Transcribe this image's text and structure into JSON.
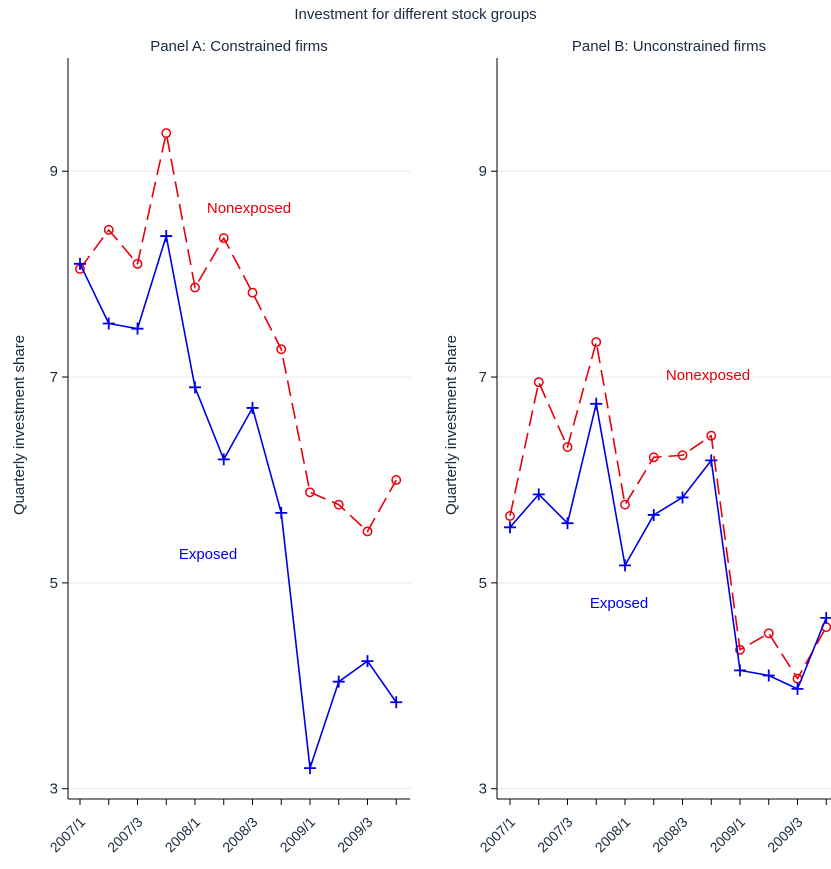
{
  "title": "Investment for different stock groups",
  "chart_data": [
    {
      "type": "line",
      "title": "Panel A: Constrained firms",
      "ylabel": "Quarterly investment share",
      "xlabel": "",
      "ylim": [
        2.9,
        10.1
      ],
      "yticks": [
        3,
        5,
        7,
        9
      ],
      "categories": [
        "2007/1",
        "2007/2",
        "2007/3",
        "2007/4",
        "2008/1",
        "2008/2",
        "2008/3",
        "2008/4",
        "2009/1",
        "2009/2",
        "2009/3",
        "2009/4"
      ],
      "tick_labels": [
        "2007/1",
        "",
        "2007/3",
        "",
        "2008/1",
        "",
        "2008/3",
        "",
        "2009/1",
        "",
        "2009/3",
        ""
      ],
      "grid": true,
      "series": [
        {
          "name": "Nonexposed",
          "color": "#e8000b",
          "marker": "circle",
          "dash": "long-dash",
          "values": [
            8.05,
            8.43,
            8.1,
            9.37,
            7.87,
            8.35,
            7.82,
            7.27,
            5.88,
            5.76,
            5.5,
            6.0
          ]
        },
        {
          "name": "Exposed",
          "color": "#0000e8",
          "marker": "plus",
          "dash": "solid",
          "values": [
            8.1,
            7.52,
            7.47,
            8.37,
            6.9,
            6.2,
            6.7,
            5.68,
            3.2,
            4.04,
            4.24,
            3.84
          ]
        }
      ]
    },
    {
      "type": "line",
      "title": "Panel B: Unconstrained firms",
      "ylabel": "Quarterly investment share",
      "xlabel": "",
      "ylim": [
        2.9,
        10.1
      ],
      "yticks": [
        3,
        5,
        7,
        9
      ],
      "categories": [
        "2007/1",
        "2007/2",
        "2007/3",
        "2007/4",
        "2008/1",
        "2008/2",
        "2008/3",
        "2008/4",
        "2009/1",
        "2009/2",
        "2009/3",
        "2009/4"
      ],
      "tick_labels": [
        "2007/1",
        "",
        "2007/3",
        "",
        "2008/1",
        "",
        "2008/3",
        "",
        "2009/1",
        "",
        "2009/3",
        ""
      ],
      "grid": true,
      "series": [
        {
          "name": "Nonexposed",
          "color": "#e8000b",
          "marker": "circle",
          "dash": "long-dash",
          "values": [
            5.65,
            6.95,
            6.32,
            7.34,
            5.76,
            6.22,
            6.24,
            6.43,
            4.35,
            4.51,
            4.07,
            4.57
          ]
        },
        {
          "name": "Exposed",
          "color": "#0000e8",
          "marker": "plus",
          "dash": "solid",
          "values": [
            5.54,
            5.86,
            5.58,
            6.74,
            5.17,
            5.66,
            5.83,
            6.19,
            4.15,
            4.1,
            3.97,
            4.66
          ]
        }
      ]
    }
  ]
}
